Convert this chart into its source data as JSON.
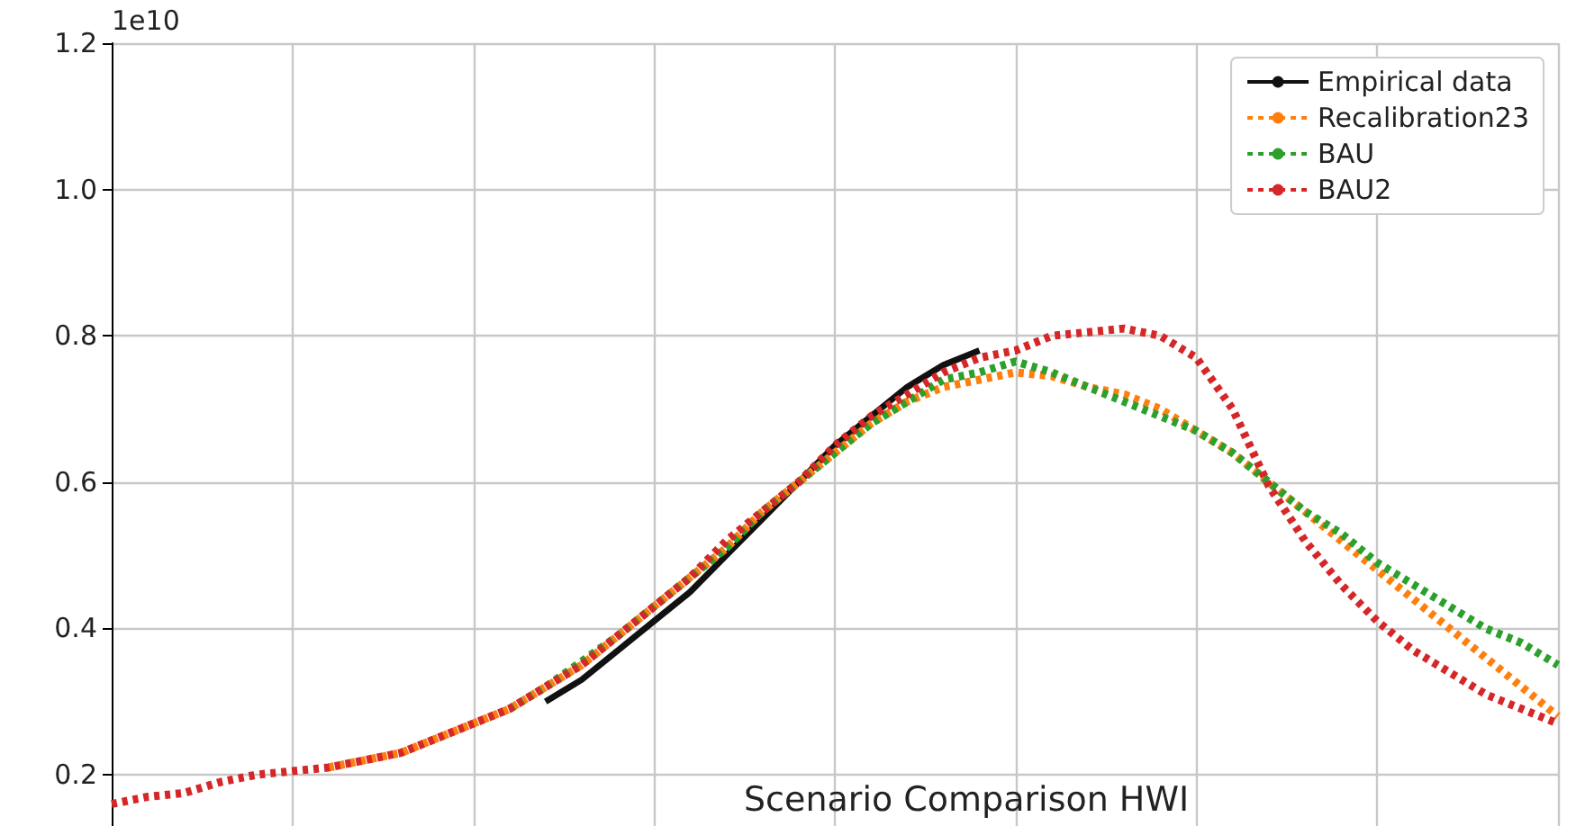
{
  "chart_data": {
    "type": "line",
    "title": "Scenario Comparison HWI",
    "annotations": [
      "1e10"
    ],
    "categories": [
      null,
      null,
      null,
      null,
      null,
      null,
      null,
      null,
      null,
      null,
      null,
      null,
      null,
      null,
      null,
      null,
      null,
      null,
      null,
      null,
      null,
      null,
      null,
      null,
      null,
      null,
      null,
      null,
      null,
      null,
      null,
      null,
      null,
      null,
      null,
      null,
      null,
      null,
      null,
      null,
      null
    ],
    "series": [
      {
        "name": "Empirical data",
        "color": "#111111",
        "line_style": "solid",
        "values": [
          null,
          null,
          null,
          null,
          null,
          null,
          null,
          null,
          null,
          null,
          null,
          null,
          0.3,
          0.33,
          0.37,
          0.41,
          0.45,
          0.5,
          0.55,
          0.6,
          0.65,
          0.69,
          0.73,
          0.76,
          0.78,
          null,
          null,
          null,
          null,
          null,
          null,
          null,
          null,
          null,
          null,
          null,
          null,
          null,
          null,
          null,
          null
        ]
      },
      {
        "name": "Recalibration23",
        "color": "#ff7f0e",
        "line_style": "dotted",
        "values": [
          null,
          null,
          null,
          null,
          null,
          null,
          0.21,
          0.22,
          0.23,
          0.25,
          0.27,
          0.29,
          0.32,
          0.35,
          0.39,
          0.43,
          0.47,
          0.51,
          0.56,
          0.6,
          0.64,
          0.68,
          0.71,
          0.73,
          0.74,
          0.75,
          0.745,
          0.73,
          0.72,
          0.7,
          0.67,
          0.64,
          0.6,
          0.56,
          0.52,
          0.48,
          0.44,
          0.4,
          0.36,
          0.32,
          0.28
        ]
      },
      {
        "name": "BAU",
        "color": "#2ca02c",
        "line_style": "dotted",
        "values": [
          null,
          null,
          null,
          null,
          null,
          null,
          null,
          null,
          null,
          null,
          null,
          0.29,
          0.32,
          0.355,
          0.39,
          0.43,
          0.47,
          0.51,
          0.56,
          0.6,
          0.64,
          0.68,
          0.71,
          0.74,
          0.75,
          0.765,
          0.75,
          0.73,
          0.71,
          0.69,
          0.67,
          0.64,
          0.6,
          0.56,
          0.53,
          0.49,
          0.46,
          0.43,
          0.4,
          0.38,
          0.35
        ]
      },
      {
        "name": "BAU2",
        "color": "#d62728",
        "line_style": "dotted",
        "values": [
          0.16,
          0.17,
          0.175,
          0.19,
          0.2,
          0.205,
          0.21,
          0.22,
          0.23,
          0.25,
          0.27,
          0.29,
          0.32,
          0.35,
          0.39,
          0.43,
          0.47,
          0.52,
          0.56,
          0.6,
          0.65,
          0.69,
          0.72,
          0.75,
          0.77,
          0.78,
          0.8,
          0.805,
          0.81,
          0.8,
          0.77,
          0.7,
          0.595,
          0.52,
          0.46,
          0.41,
          0.37,
          0.34,
          0.31,
          0.29,
          0.27
        ]
      }
    ],
    "ylim": [
      0.13,
      1.2
    ],
    "yticks": [
      0.2,
      0.4,
      0.6,
      0.8,
      {
        "value": 1,
        "label": "1.0"
      },
      1.2
    ],
    "grid": true,
    "legend": "top right",
    "tick_labels": "y"
  }
}
